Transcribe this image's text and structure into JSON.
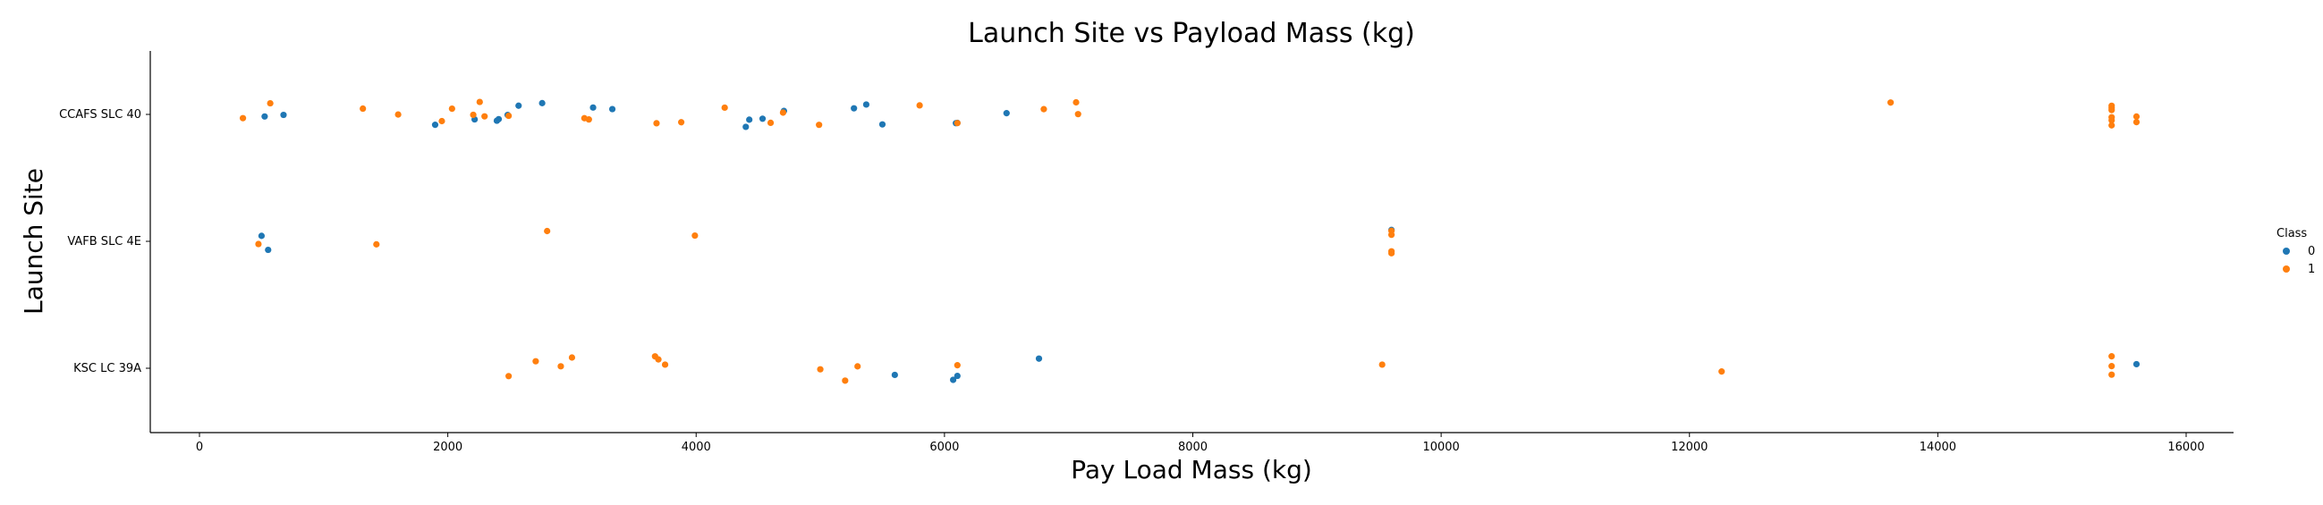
{
  "chart_data": {
    "type": "scatter",
    "title": "Launch Site vs Payload Mass (kg)",
    "xlabel": "Pay Load Mass (kg)",
    "ylabel": "Launch Site",
    "xlim": [
      -400,
      16300
    ],
    "xticks": [
      0,
      2000,
      4000,
      6000,
      8000,
      10000,
      12000,
      14000,
      16000
    ],
    "xtick_labels": [
      "0",
      "2000",
      "4000",
      "6000",
      "8000",
      "10000",
      "12000",
      "14000",
      "16000"
    ],
    "categories": [
      "CCAFS SLC 40",
      "VAFB SLC 4E",
      "KSC LC 39A"
    ],
    "grid": false,
    "legend": {
      "title": "Class",
      "placement": "right",
      "entries": [
        {
          "label": "0",
          "color": "#1f77b4"
        },
        {
          "label": "1",
          "color": "#ff7f0e"
        }
      ]
    },
    "series": [
      {
        "name": "0",
        "color": "#1f77b4",
        "points": [
          {
            "x": 525,
            "site": "CCAFS SLC 40"
          },
          {
            "x": 677,
            "site": "CCAFS SLC 40"
          },
          {
            "x": 1898,
            "site": "CCAFS SLC 40"
          },
          {
            "x": 2216,
            "site": "CCAFS SLC 40"
          },
          {
            "x": 2395,
            "site": "CCAFS SLC 40"
          },
          {
            "x": 2410,
            "site": "CCAFS SLC 40"
          },
          {
            "x": 2482,
            "site": "CCAFS SLC 40"
          },
          {
            "x": 2570,
            "site": "CCAFS SLC 40"
          },
          {
            "x": 2760,
            "site": "CCAFS SLC 40"
          },
          {
            "x": 3170,
            "site": "CCAFS SLC 40"
          },
          {
            "x": 3325,
            "site": "CCAFS SLC 40"
          },
          {
            "x": 4400,
            "site": "CCAFS SLC 40"
          },
          {
            "x": 4428,
            "site": "CCAFS SLC 40"
          },
          {
            "x": 4535,
            "site": "CCAFS SLC 40"
          },
          {
            "x": 4707,
            "site": "CCAFS SLC 40"
          },
          {
            "x": 5271,
            "site": "CCAFS SLC 40"
          },
          {
            "x": 5370,
            "site": "CCAFS SLC 40"
          },
          {
            "x": 5500,
            "site": "CCAFS SLC 40"
          },
          {
            "x": 6092,
            "site": "CCAFS SLC 40"
          },
          {
            "x": 6104,
            "site": "CCAFS SLC 40"
          },
          {
            "x": 6500,
            "site": "CCAFS SLC 40"
          },
          {
            "x": 500,
            "site": "VAFB SLC 4E"
          },
          {
            "x": 553,
            "site": "VAFB SLC 4E"
          },
          {
            "x": 9600,
            "site": "VAFB SLC 4E"
          },
          {
            "x": 5600,
            "site": "KSC LC 39A"
          },
          {
            "x": 6070,
            "site": "KSC LC 39A"
          },
          {
            "x": 6104,
            "site": "KSC LC 39A"
          },
          {
            "x": 6761,
            "site": "KSC LC 39A"
          },
          {
            "x": 15600,
            "site": "KSC LC 39A"
          }
        ]
      },
      {
        "name": "1",
        "color": "#ff7f0e",
        "points": [
          {
            "x": 350,
            "site": "CCAFS SLC 40"
          },
          {
            "x": 570,
            "site": "CCAFS SLC 40"
          },
          {
            "x": 1316,
            "site": "CCAFS SLC 40"
          },
          {
            "x": 1600,
            "site": "CCAFS SLC 40"
          },
          {
            "x": 1952,
            "site": "CCAFS SLC 40"
          },
          {
            "x": 2034,
            "site": "CCAFS SLC 40"
          },
          {
            "x": 2205,
            "site": "CCAFS SLC 40"
          },
          {
            "x": 2257,
            "site": "CCAFS SLC 40"
          },
          {
            "x": 2296,
            "site": "CCAFS SLC 40"
          },
          {
            "x": 2490,
            "site": "CCAFS SLC 40"
          },
          {
            "x": 3100,
            "site": "CCAFS SLC 40"
          },
          {
            "x": 3136,
            "site": "CCAFS SLC 40"
          },
          {
            "x": 3681,
            "site": "CCAFS SLC 40"
          },
          {
            "x": 3880,
            "site": "CCAFS SLC 40"
          },
          {
            "x": 4230,
            "site": "CCAFS SLC 40"
          },
          {
            "x": 4600,
            "site": "CCAFS SLC 40"
          },
          {
            "x": 4700,
            "site": "CCAFS SLC 40"
          },
          {
            "x": 4990,
            "site": "CCAFS SLC 40"
          },
          {
            "x": 5800,
            "site": "CCAFS SLC 40"
          },
          {
            "x": 6104,
            "site": "CCAFS SLC 40"
          },
          {
            "x": 6800,
            "site": "CCAFS SLC 40"
          },
          {
            "x": 7060,
            "site": "CCAFS SLC 40"
          },
          {
            "x": 7076,
            "site": "CCAFS SLC 40"
          },
          {
            "x": 13620,
            "site": "CCAFS SLC 40"
          },
          {
            "x": 15400,
            "site": "CCAFS SLC 40"
          },
          {
            "x": 15400,
            "site": "CCAFS SLC 40"
          },
          {
            "x": 15400,
            "site": "CCAFS SLC 40"
          },
          {
            "x": 15400,
            "site": "CCAFS SLC 40"
          },
          {
            "x": 15400,
            "site": "CCAFS SLC 40"
          },
          {
            "x": 15400,
            "site": "CCAFS SLC 40"
          },
          {
            "x": 15600,
            "site": "CCAFS SLC 40"
          },
          {
            "x": 15600,
            "site": "CCAFS SLC 40"
          },
          {
            "x": 475,
            "site": "VAFB SLC 4E"
          },
          {
            "x": 1425,
            "site": "VAFB SLC 4E"
          },
          {
            "x": 2800,
            "site": "VAFB SLC 4E"
          },
          {
            "x": 3990,
            "site": "VAFB SLC 4E"
          },
          {
            "x": 9600,
            "site": "VAFB SLC 4E"
          },
          {
            "x": 9600,
            "site": "VAFB SLC 4E"
          },
          {
            "x": 9600,
            "site": "VAFB SLC 4E"
          },
          {
            "x": 9600,
            "site": "VAFB SLC 4E"
          },
          {
            "x": 2490,
            "site": "KSC LC 39A"
          },
          {
            "x": 2708,
            "site": "KSC LC 39A"
          },
          {
            "x": 2910,
            "site": "KSC LC 39A"
          },
          {
            "x": 3000,
            "site": "KSC LC 39A"
          },
          {
            "x": 3669,
            "site": "KSC LC 39A"
          },
          {
            "x": 3696,
            "site": "KSC LC 39A"
          },
          {
            "x": 3750,
            "site": "KSC LC 39A"
          },
          {
            "x": 5000,
            "site": "KSC LC 39A"
          },
          {
            "x": 5200,
            "site": "KSC LC 39A"
          },
          {
            "x": 5300,
            "site": "KSC LC 39A"
          },
          {
            "x": 6104,
            "site": "KSC LC 39A"
          },
          {
            "x": 9525,
            "site": "KSC LC 39A"
          },
          {
            "x": 12259,
            "site": "KSC LC 39A"
          },
          {
            "x": 15400,
            "site": "KSC LC 39A"
          },
          {
            "x": 15400,
            "site": "KSC LC 39A"
          },
          {
            "x": 15400,
            "site": "KSC LC 39A"
          }
        ]
      }
    ]
  }
}
